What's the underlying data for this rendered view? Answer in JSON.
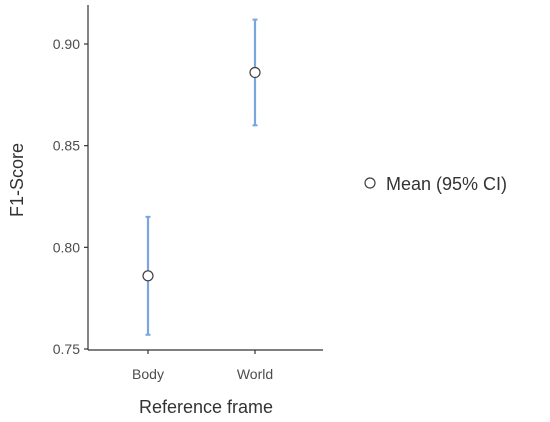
{
  "chart_data": {
    "type": "scatter",
    "categories": [
      "Body",
      "World"
    ],
    "series": [
      {
        "name": "Mean (95% CI)",
        "values": [
          0.786,
          0.886
        ],
        "ci_lower": [
          0.757,
          0.86
        ],
        "ci_upper": [
          0.815,
          0.912
        ]
      }
    ],
    "xlabel": "Reference frame",
    "ylabel": "F1-Score",
    "ylim": [
      0.75,
      0.92
    ],
    "yticks": [
      "0.75",
      "0.80",
      "0.85",
      "0.90"
    ],
    "grid": false,
    "legend_position": "right",
    "colors": {
      "errorbar": "#7aa6e0",
      "point_fill": "#ffffff",
      "point_stroke": "#404040",
      "axis": "#333333"
    }
  }
}
